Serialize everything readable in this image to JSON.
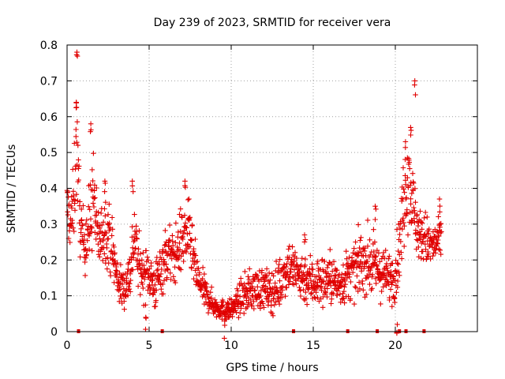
{
  "chart_data": {
    "type": "scatter",
    "title": "Day 239 of 2023, SRMTID for receiver vera",
    "xlabel": "GPS time / hours",
    "ylabel": "SRMTID / TECUs",
    "xlim": [
      0,
      25
    ],
    "ylim": [
      0,
      0.8
    ],
    "x_ticks": [
      0,
      5,
      10,
      15,
      20
    ],
    "y_ticks": [
      0,
      0.1,
      0.2,
      0.3,
      0.4,
      0.5,
      0.6,
      0.7,
      0.8
    ],
    "x_tick_labels": [
      "0",
      "5",
      "10",
      "15",
      "20"
    ],
    "y_tick_labels": [
      "0",
      "0.1",
      "0.2",
      "0.3",
      "0.4",
      "0.5",
      "0.6",
      "0.7",
      "0.8"
    ],
    "grid": true,
    "marker": "+",
    "color": "#e00000",
    "series": [
      {
        "name": "SRMTID",
        "envelope_hours": [
          0.0,
          0.2,
          0.4,
          0.55,
          0.65,
          0.8,
          1.0,
          1.4,
          1.6,
          1.8,
          2.0,
          2.3,
          2.6,
          2.8,
          3.0,
          3.3,
          3.6,
          3.9,
          4.1,
          4.3,
          4.6,
          5.0,
          5.3,
          5.6,
          5.9,
          6.2,
          6.5,
          6.8,
          7.1,
          7.4,
          7.7,
          8.0,
          8.5,
          9.0,
          9.5,
          10.0,
          10.5,
          11.0,
          11.5,
          12.0,
          12.5,
          13.0,
          13.5,
          14.0,
          14.5,
          15.0,
          15.5,
          16.0,
          16.5,
          17.0,
          17.5,
          18.0,
          18.5,
          19.0,
          19.5,
          20.0,
          20.3,
          20.6,
          20.8,
          21.0,
          21.2,
          21.4,
          21.6,
          21.8,
          22.0,
          22.3,
          22.6,
          22.8
        ],
        "envelope_center": [
          0.35,
          0.3,
          0.35,
          0.55,
          0.45,
          0.3,
          0.25,
          0.3,
          0.4,
          0.28,
          0.25,
          0.3,
          0.26,
          0.22,
          0.16,
          0.12,
          0.13,
          0.18,
          0.28,
          0.2,
          0.16,
          0.17,
          0.12,
          0.16,
          0.2,
          0.22,
          0.2,
          0.24,
          0.26,
          0.28,
          0.2,
          0.14,
          0.1,
          0.07,
          0.06,
          0.06,
          0.09,
          0.11,
          0.12,
          0.12,
          0.11,
          0.14,
          0.19,
          0.16,
          0.15,
          0.14,
          0.14,
          0.15,
          0.13,
          0.15,
          0.17,
          0.2,
          0.19,
          0.17,
          0.15,
          0.16,
          0.25,
          0.42,
          0.44,
          0.38,
          0.32,
          0.28,
          0.26,
          0.27,
          0.24,
          0.24,
          0.25,
          0.26
        ],
        "envelope_spread": [
          0.06,
          0.05,
          0.08,
          0.14,
          0.08,
          0.06,
          0.06,
          0.08,
          0.1,
          0.07,
          0.06,
          0.07,
          0.06,
          0.06,
          0.05,
          0.04,
          0.04,
          0.06,
          0.08,
          0.05,
          0.05,
          0.05,
          0.05,
          0.05,
          0.06,
          0.06,
          0.05,
          0.06,
          0.07,
          0.06,
          0.05,
          0.04,
          0.03,
          0.02,
          0.02,
          0.02,
          0.03,
          0.04,
          0.04,
          0.04,
          0.04,
          0.05,
          0.05,
          0.05,
          0.05,
          0.05,
          0.05,
          0.05,
          0.04,
          0.05,
          0.05,
          0.06,
          0.06,
          0.05,
          0.05,
          0.05,
          0.07,
          0.1,
          0.1,
          0.07,
          0.07,
          0.05,
          0.05,
          0.05,
          0.05,
          0.04,
          0.04,
          0.04
        ],
        "peaks": [
          {
            "x": 0.6,
            "y": 0.78
          },
          {
            "x": 0.55,
            "y": 0.64
          },
          {
            "x": 1.45,
            "y": 0.58
          },
          {
            "x": 2.3,
            "y": 0.42
          },
          {
            "x": 4.0,
            "y": 0.42
          },
          {
            "x": 7.2,
            "y": 0.42
          },
          {
            "x": 21.2,
            "y": 0.7
          },
          {
            "x": 20.95,
            "y": 0.57
          },
          {
            "x": 20.6,
            "y": 0.53
          },
          {
            "x": 14.5,
            "y": 0.27
          },
          {
            "x": 18.8,
            "y": 0.35
          },
          {
            "x": 22.7,
            "y": 0.37
          },
          {
            "x": 4.8,
            "y": 0.04
          },
          {
            "x": 9.6,
            "y": 0.03
          },
          {
            "x": 20.1,
            "y": 0.02
          }
        ]
      }
    ],
    "gap_markers_hours": [
      0.7,
      5.8,
      13.8,
      17.1,
      18.9,
      20.25,
      20.65,
      21.75
    ]
  }
}
